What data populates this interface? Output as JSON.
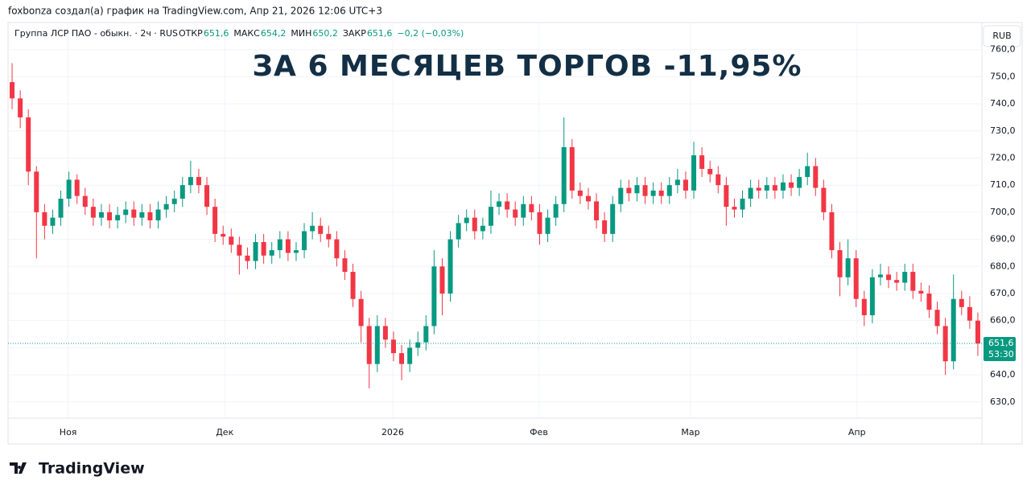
{
  "header": {
    "author_line": "foxbonza создал(а) график на TradingView.com, Апр 21, 2026 12:06 UTC+3",
    "symbol": "Группа ЛСР ПАО - обыкн. · 2ч · RUS",
    "ohlc": [
      {
        "label": "ОТКР",
        "value": "651,6"
      },
      {
        "label": "МАКС",
        "value": "654,2"
      },
      {
        "label": "МИН",
        "value": "650,2"
      },
      {
        "label": "ЗАКР",
        "value": "651,6"
      }
    ],
    "change": "−0,2 (−0,03%)",
    "currency": "RUB",
    "logo": "TradingView"
  },
  "chart_data": {
    "type": "candlestick",
    "title": "ЗА 6 МЕСЯЦЕВ ТОРГОВ -11,95%",
    "up_color": "#089981",
    "down_color": "#f23645",
    "xlim": [
      0,
      120
    ],
    "xticks": [
      {
        "value": 7.4,
        "label": "Ноя"
      },
      {
        "value": 26.7,
        "label": "Дек"
      },
      {
        "value": 47.4,
        "label": "2026"
      },
      {
        "value": 65.4,
        "label": "Фев"
      },
      {
        "value": 84.1,
        "label": "Мар"
      },
      {
        "value": 104.6,
        "label": "Апр"
      }
    ],
    "ylim": [
      624,
      770
    ],
    "yticks": [
      {
        "value": 630,
        "label": "630,0"
      },
      {
        "value": 640,
        "label": "640,0"
      },
      {
        "value": 650,
        "label": "650,0"
      },
      {
        "value": 660,
        "label": "660,0"
      },
      {
        "value": 670,
        "label": "670,0"
      },
      {
        "value": 680,
        "label": "680,0"
      },
      {
        "value": 690,
        "label": "690,0"
      },
      {
        "value": 700,
        "label": "700,0"
      },
      {
        "value": 710,
        "label": "710,0"
      },
      {
        "value": 720,
        "label": "720,0"
      },
      {
        "value": 730,
        "label": "730,0"
      },
      {
        "value": 740,
        "label": "740,0"
      },
      {
        "value": 750,
        "label": "750,0"
      },
      {
        "value": 760,
        "label": "760,0"
      }
    ],
    "last_price": {
      "value": 651.6,
      "label": "651,6"
    },
    "countdown": "53:30",
    "grid": true,
    "open": [
      748,
      742,
      735,
      715,
      700,
      695,
      698,
      705,
      712,
      706,
      702,
      698,
      700,
      697,
      699,
      701,
      698,
      700,
      697,
      701,
      703,
      705,
      710,
      713,
      710,
      702,
      692,
      691,
      688,
      684,
      682,
      689,
      684,
      686,
      690,
      685,
      686,
      693,
      695,
      692,
      690,
      683,
      678,
      668,
      658,
      644,
      658,
      653,
      648,
      644,
      650,
      652,
      658,
      680,
      670,
      690,
      696,
      698,
      693,
      695,
      702,
      704,
      701,
      698,
      703,
      700,
      692,
      698,
      703,
      724,
      708,
      706,
      704,
      697,
      692,
      703,
      709,
      707,
      710,
      706,
      708,
      706,
      710,
      712,
      708,
      721,
      716,
      714,
      710,
      702,
      701,
      705,
      709,
      708,
      710,
      708,
      711,
      709,
      713,
      717,
      709,
      700,
      686,
      676,
      683,
      668,
      662,
      676,
      677,
      675,
      674,
      678,
      671,
      670,
      664,
      658,
      645,
      668,
      665,
      660
    ],
    "high": [
      755,
      745,
      738,
      717,
      703,
      701,
      708,
      715,
      714,
      709,
      705,
      703,
      703,
      702,
      704,
      704,
      703,
      703,
      704,
      706,
      708,
      713,
      719,
      716,
      713,
      705,
      695,
      694,
      691,
      687,
      692,
      692,
      689,
      693,
      693,
      689,
      696,
      700,
      698,
      695,
      693,
      686,
      681,
      671,
      661,
      662,
      661,
      656,
      651,
      653,
      656,
      662,
      686,
      683,
      693,
      699,
      701,
      701,
      698,
      708,
      707,
      707,
      704,
      706,
      706,
      703,
      701,
      706,
      735,
      727,
      711,
      709,
      707,
      700,
      706,
      712,
      712,
      713,
      713,
      711,
      711,
      713,
      716,
      715,
      726,
      724,
      719,
      717,
      713,
      705,
      708,
      712,
      712,
      713,
      713,
      714,
      714,
      716,
      722,
      720,
      712,
      703,
      689,
      690,
      686,
      671,
      679,
      681,
      680,
      678,
      681,
      681,
      674,
      673,
      667,
      661,
      677,
      671,
      669,
      663
    ],
    "low": [
      738,
      731,
      710,
      683,
      690,
      692,
      695,
      702,
      703,
      699,
      695,
      695,
      694,
      694,
      696,
      695,
      695,
      694,
      694,
      698,
      700,
      702,
      707,
      707,
      699,
      689,
      688,
      685,
      677,
      679,
      679,
      681,
      681,
      683,
      682,
      682,
      683,
      690,
      689,
      687,
      680,
      675,
      665,
      652,
      635,
      641,
      650,
      645,
      638,
      641,
      647,
      649,
      655,
      662,
      667,
      687,
      693,
      690,
      690,
      692,
      699,
      698,
      695,
      695,
      697,
      688,
      689,
      695,
      700,
      705,
      703,
      701,
      694,
      689,
      689,
      700,
      704,
      704,
      703,
      703,
      703,
      703,
      707,
      705,
      705,
      713,
      711,
      707,
      695,
      698,
      698,
      702,
      705,
      705,
      705,
      705,
      706,
      706,
      710,
      706,
      697,
      683,
      669,
      673,
      665,
      658,
      659,
      673,
      672,
      671,
      671,
      668,
      667,
      661,
      655,
      640,
      642,
      662,
      657,
      647
    ],
    "close": [
      742,
      735,
      715,
      700,
      695,
      698,
      705,
      712,
      706,
      702,
      698,
      700,
      697,
      699,
      701,
      698,
      700,
      697,
      701,
      703,
      705,
      710,
      713,
      710,
      702,
      692,
      691,
      688,
      684,
      682,
      689,
      684,
      686,
      690,
      685,
      686,
      693,
      695,
      692,
      690,
      683,
      678,
      668,
      658,
      644,
      658,
      653,
      648,
      644,
      650,
      652,
      658,
      680,
      670,
      690,
      696,
      698,
      693,
      695,
      702,
      704,
      701,
      698,
      703,
      700,
      692,
      698,
      703,
      724,
      708,
      706,
      704,
      697,
      692,
      703,
      709,
      707,
      710,
      706,
      708,
      706,
      710,
      712,
      708,
      721,
      716,
      714,
      710,
      702,
      701,
      705,
      709,
      708,
      710,
      708,
      711,
      709,
      713,
      717,
      709,
      700,
      686,
      676,
      683,
      668,
      662,
      676,
      677,
      675,
      674,
      678,
      671,
      670,
      664,
      658,
      645,
      668,
      665,
      660,
      651.6
    ]
  }
}
